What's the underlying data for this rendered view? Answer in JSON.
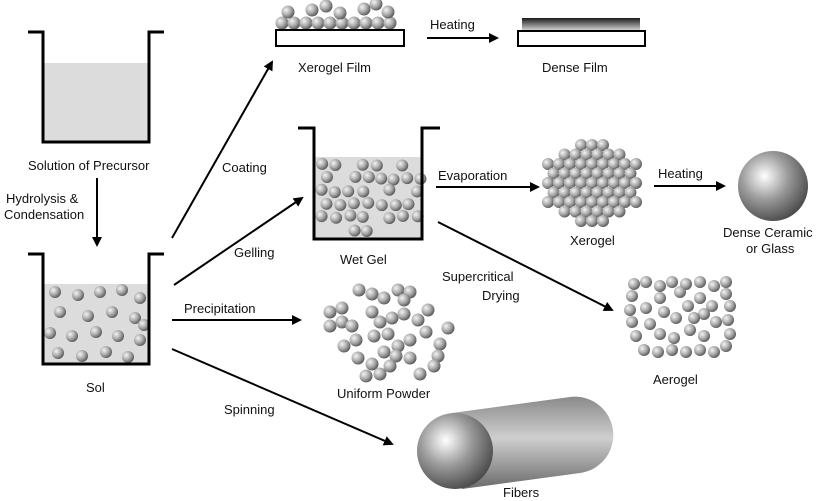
{
  "labels": {
    "solution": "Solution of Precursor",
    "hydrolysis_1": "Hydrolysis &",
    "hydrolysis_2": "Condensation",
    "sol": "Sol",
    "coating": "Coating",
    "gelling": "Gelling",
    "precipitation": "Precipitation",
    "spinning": "Spinning",
    "xerogel_film": "Xerogel Film",
    "heating_film": "Heating",
    "dense_film": "Dense Film",
    "wet_gel": "Wet Gel",
    "evaporation": "Evaporation",
    "xerogel": "Xerogel",
    "heating_ceramic": "Heating",
    "dense_ceramic_1": "Dense Ceramic",
    "dense_ceramic_2": "or Glass",
    "supercritical_1": "Supercritical",
    "supercritical_2": "Drying",
    "aerogel": "Aerogel",
    "uniform_powder": "Uniform Powder",
    "fibers": "Fibers"
  },
  "colors": {
    "line": "#000000",
    "liquid": "#dcdcdc",
    "sphere_light": "#f2f2f2",
    "sphere_dark": "#5a5a5a"
  }
}
